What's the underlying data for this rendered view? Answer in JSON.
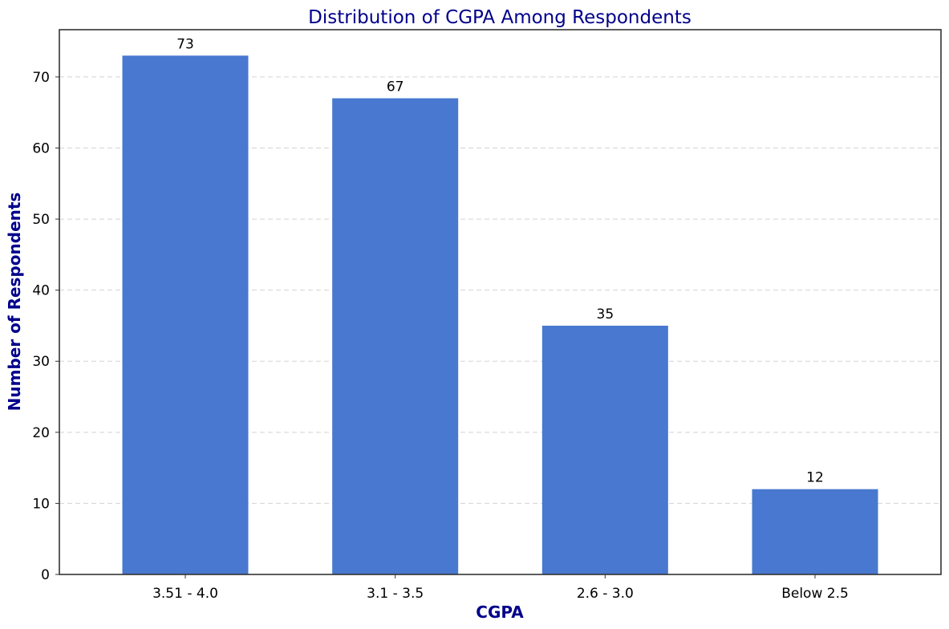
{
  "chart_data": {
    "type": "bar",
    "title": "Distribution of CGPA Among Respondents",
    "xlabel": "CGPA",
    "ylabel": "Number of Respondents",
    "categories": [
      "3.51 - 4.0",
      "3.1 - 3.5",
      "2.6 - 3.0",
      "Below 2.5"
    ],
    "values": [
      73,
      67,
      35,
      12
    ],
    "data_labels": [
      "73",
      "67",
      "35",
      "12"
    ],
    "ylim": [
      0,
      76.65
    ],
    "yticks": [
      0,
      10,
      20,
      30,
      40,
      50,
      60,
      70
    ],
    "ytick_labels": [
      "0",
      "10",
      "20",
      "30",
      "40",
      "50",
      "60",
      "70"
    ],
    "grid": {
      "y": true,
      "style": "dashed"
    },
    "colors": {
      "bar": "#4878cf",
      "title": "#00008b",
      "axis_label": "#00008b",
      "grid": "#d3d3d3",
      "axes": "#333333"
    }
  }
}
